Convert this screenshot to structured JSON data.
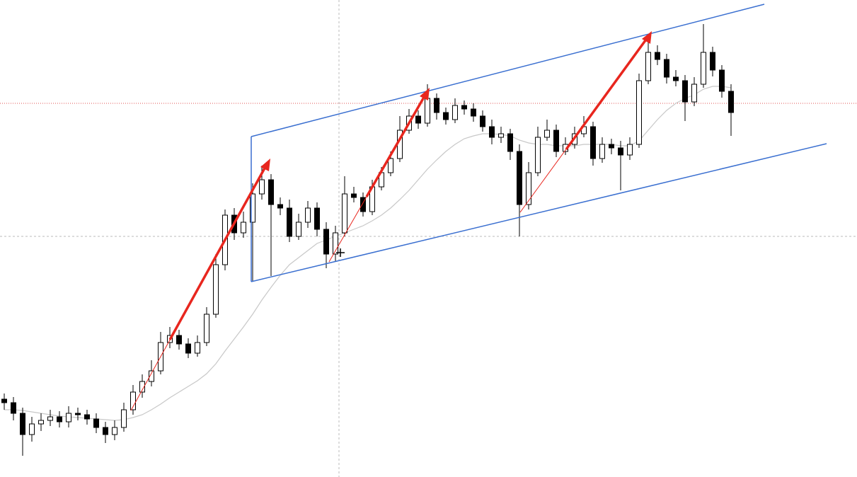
{
  "chart_data": {
    "type": "candlestick",
    "ylim": [
      0,
      674
    ],
    "open": [
      110,
      105,
      90,
      60,
      75,
      80,
      85,
      78,
      90,
      88,
      82,
      70,
      60,
      70,
      95,
      120,
      135,
      150,
      190,
      200,
      188,
      175,
      190,
      230,
      300,
      370,
      345,
      360,
      400,
      420,
      385,
      380,
      340,
      360,
      380,
      350,
      315,
      345,
      400,
      395,
      375,
      410,
      430,
      450,
      490,
      510,
      500,
      535,
      515,
      505,
      525,
      520,
      510,
      495,
      480,
      485,
      460,
      385,
      430,
      480,
      490,
      460,
      470,
      485,
      495,
      450,
      470,
      465,
      455,
      470,
      560,
      600,
      590,
      565,
      560,
      530,
      555,
      600,
      575,
      545
    ],
    "high": [
      118,
      113,
      98,
      85,
      90,
      95,
      93,
      100,
      98,
      95,
      90,
      78,
      80,
      105,
      130,
      145,
      165,
      205,
      212,
      208,
      196,
      200,
      240,
      315,
      378,
      380,
      375,
      415,
      440,
      428,
      395,
      392,
      372,
      390,
      388,
      360,
      355,
      425,
      410,
      402,
      420,
      438,
      460,
      510,
      520,
      518,
      555,
      542,
      522,
      535,
      532,
      528,
      518,
      505,
      495,
      492,
      470,
      445,
      495,
      505,
      498,
      480,
      495,
      510,
      502,
      480,
      478,
      475,
      480,
      570,
      625,
      610,
      598,
      575,
      568,
      565,
      640,
      608,
      582,
      555
    ],
    "low": [
      95,
      80,
      30,
      50,
      65,
      72,
      70,
      70,
      80,
      74,
      62,
      48,
      52,
      64,
      88,
      112,
      128,
      145,
      182,
      180,
      168,
      170,
      185,
      225,
      292,
      335,
      338,
      276,
      392,
      284,
      370,
      332,
      335,
      352,
      340,
      295,
      305,
      340,
      388,
      368,
      370,
      405,
      425,
      445,
      485,
      492,
      495,
      505,
      498,
      500,
      512,
      502,
      488,
      470,
      472,
      448,
      340,
      378,
      425,
      475,
      452,
      455,
      464,
      480,
      440,
      444,
      456,
      405,
      448,
      465,
      555,
      582,
      556,
      552,
      503,
      524,
      550,
      566,
      536,
      482
    ],
    "close": [
      105,
      90,
      60,
      75,
      80,
      85,
      78,
      90,
      88,
      82,
      70,
      60,
      70,
      95,
      120,
      135,
      150,
      190,
      200,
      188,
      175,
      190,
      230,
      300,
      370,
      345,
      360,
      400,
      420,
      385,
      380,
      340,
      360,
      380,
      350,
      315,
      345,
      400,
      395,
      375,
      410,
      430,
      450,
      490,
      510,
      500,
      535,
      515,
      505,
      525,
      520,
      510,
      495,
      480,
      485,
      460,
      385,
      430,
      480,
      490,
      460,
      470,
      485,
      495,
      450,
      470,
      465,
      455,
      470,
      560,
      600,
      590,
      565,
      560,
      530,
      555,
      600,
      575,
      545,
      515
    ],
    "moving_average": [
      95,
      95,
      94,
      92,
      90,
      88,
      86,
      85,
      84,
      83,
      82,
      81,
      80,
      81,
      84,
      88,
      95,
      103,
      112,
      120,
      128,
      136,
      146,
      160,
      178,
      195,
      212,
      230,
      250,
      268,
      285,
      300,
      310,
      320,
      330,
      335,
      340,
      345,
      350,
      355,
      362,
      370,
      380,
      392,
      405,
      420,
      435,
      448,
      460,
      470,
      478,
      482,
      485,
      485,
      484,
      482,
      476,
      472,
      470,
      470,
      468,
      468,
      468,
      470,
      470,
      470,
      470,
      468,
      468,
      475,
      490,
      505,
      518,
      528,
      535,
      540,
      548,
      552,
      552,
      550
    ]
  }
}
